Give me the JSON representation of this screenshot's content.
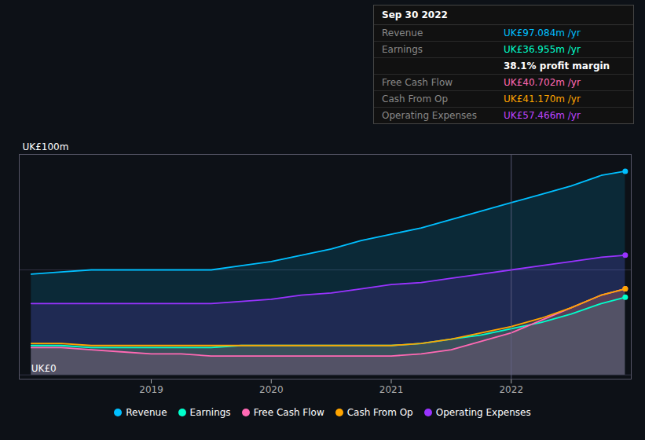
{
  "chart_data": {
    "type": "area",
    "ylabel": "UK£100m",
    "annotations": [
      {
        "text": "UK£0",
        "x": 2018.0,
        "y": 0
      }
    ],
    "x": [
      2018.0,
      2018.25,
      2018.5,
      2018.75,
      2019.0,
      2019.25,
      2019.5,
      2019.75,
      2020.0,
      2020.25,
      2020.5,
      2020.75,
      2021.0,
      2021.25,
      2021.5,
      2021.75,
      2022.0,
      2022.25,
      2022.5,
      2022.75,
      2022.95
    ],
    "series": [
      {
        "name": "Revenue",
        "color": "#00bfff",
        "values": [
          0.48,
          0.49,
          0.5,
          0.5,
          0.5,
          0.5,
          0.5,
          0.52,
          0.54,
          0.57,
          0.6,
          0.64,
          0.67,
          0.7,
          0.74,
          0.78,
          0.82,
          0.86,
          0.9,
          0.95,
          0.97
        ]
      },
      {
        "name": "Earnings",
        "color": "#00ffcc",
        "values": [
          0.14,
          0.14,
          0.13,
          0.13,
          0.13,
          0.13,
          0.13,
          0.14,
          0.14,
          0.14,
          0.14,
          0.14,
          0.14,
          0.15,
          0.17,
          0.19,
          0.22,
          0.25,
          0.29,
          0.34,
          0.37
        ]
      },
      {
        "name": "Free Cash Flow",
        "color": "#ff69b4",
        "values": [
          0.13,
          0.13,
          0.12,
          0.11,
          0.1,
          0.1,
          0.09,
          0.09,
          0.09,
          0.09,
          0.09,
          0.09,
          0.09,
          0.1,
          0.12,
          0.16,
          0.2,
          0.26,
          0.32,
          0.38,
          0.41
        ]
      },
      {
        "name": "Cash From Op",
        "color": "#ffa500",
        "values": [
          0.15,
          0.15,
          0.14,
          0.14,
          0.14,
          0.14,
          0.14,
          0.14,
          0.14,
          0.14,
          0.14,
          0.14,
          0.14,
          0.15,
          0.17,
          0.2,
          0.23,
          0.27,
          0.32,
          0.38,
          0.41
        ]
      },
      {
        "name": "Operating Expenses",
        "color": "#9933ff",
        "values": [
          0.34,
          0.34,
          0.34,
          0.34,
          0.34,
          0.34,
          0.34,
          0.35,
          0.36,
          0.38,
          0.39,
          0.41,
          0.43,
          0.44,
          0.46,
          0.48,
          0.5,
          0.52,
          0.54,
          0.56,
          0.57
        ]
      }
    ],
    "xlim": [
      2017.9,
      2023.0
    ],
    "xticks": [
      2019,
      2020,
      2021,
      2022
    ],
    "ylim": [
      -0.02,
      1.05
    ],
    "yticks": [
      0,
      0.5
    ],
    "grid": true,
    "tick_labels": "x",
    "legend": "bottom",
    "vline": {
      "x": 2022.0,
      "color": "#666688"
    },
    "info_box": {
      "title": "Sep 30 2022",
      "rows": [
        {
          "label": "Revenue",
          "value": "UK£97.084m /yr",
          "color": "#00bfff"
        },
        {
          "label": "Earnings",
          "value": "UK£36.955m /yr",
          "color": "#00ffcc"
        },
        {
          "value": "38.1% profit margin",
          "color": "#ffffff"
        },
        {
          "label": "Free Cash Flow",
          "value": "UK£40.702m /yr",
          "color": "#ff69b4"
        },
        {
          "label": "Cash From Op",
          "value": "UK£41.170m /yr",
          "color": "#ffa500"
        },
        {
          "label": "Operating Expenses",
          "value": "UK£57.466m /yr",
          "color": "#bb44ff"
        }
      ]
    }
  }
}
